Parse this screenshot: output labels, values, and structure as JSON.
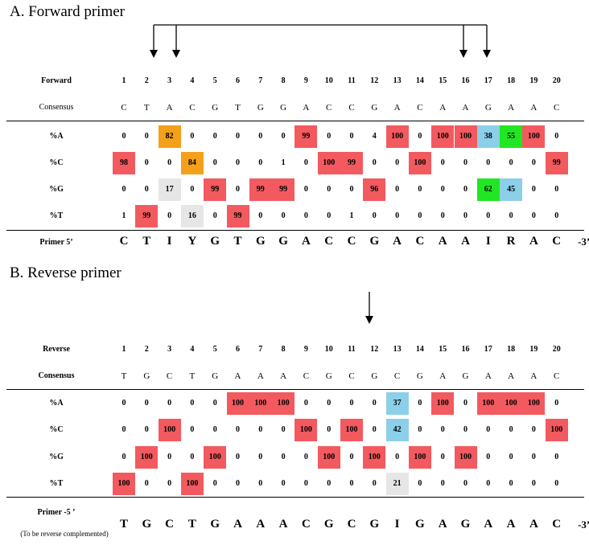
{
  "forward": {
    "title": "A.   Forward primer",
    "header_label": "Forward",
    "consensus_label": "Consensus",
    "positions": [
      "1",
      "2",
      "3",
      "4",
      "5",
      "6",
      "7",
      "8",
      "9",
      "10",
      "11",
      "12",
      "13",
      "14",
      "15",
      "16",
      "17",
      "18",
      "19",
      "20"
    ],
    "consensus": [
      "C",
      "T",
      "A",
      "C",
      "G",
      "T",
      "G",
      "G",
      "A",
      "C",
      "C",
      "G",
      "A",
      "C",
      "A",
      "A",
      "G",
      "A",
      "A",
      "C"
    ],
    "rows": [
      {
        "label": "%A",
        "values": [
          "0",
          "0",
          "82",
          "0",
          "0",
          "0",
          "0",
          "0",
          "99",
          "0",
          "0",
          "4",
          "100",
          "0",
          "100",
          "100",
          "38",
          "55",
          "100",
          "0"
        ],
        "colors": [
          "",
          "",
          "orange",
          "",
          "",
          "",
          "",
          "",
          "red",
          "",
          "",
          "",
          "red",
          "",
          "red",
          "red",
          "blue",
          "green",
          "red",
          ""
        ]
      },
      {
        "label": "%C",
        "values": [
          "98",
          "0",
          "0",
          "84",
          "0",
          "0",
          "0",
          "1",
          "0",
          "100",
          "99",
          "0",
          "0",
          "100",
          "0",
          "0",
          "0",
          "0",
          "0",
          "99"
        ],
        "colors": [
          "red",
          "",
          "",
          "orange",
          "",
          "",
          "",
          "",
          "",
          "red",
          "red",
          "",
          "",
          "red",
          "",
          "",
          "",
          "",
          "",
          "red"
        ]
      },
      {
        "label": "%G",
        "values": [
          "0",
          "0",
          "17",
          "0",
          "99",
          "0",
          "99",
          "99",
          "0",
          "0",
          "0",
          "96",
          "0",
          "0",
          "0",
          "0",
          "62",
          "45",
          "0",
          "0"
        ],
        "colors": [
          "",
          "",
          "gray",
          "",
          "red",
          "",
          "red",
          "red",
          "",
          "",
          "",
          "red",
          "",
          "",
          "",
          "",
          "green",
          "blue",
          "",
          ""
        ]
      },
      {
        "label": "%T",
        "values": [
          "1",
          "99",
          "0",
          "16",
          "0",
          "99",
          "0",
          "0",
          "0",
          "0",
          "1",
          "0",
          "0",
          "0",
          "0",
          "0",
          "0",
          "0",
          "0",
          "0"
        ],
        "colors": [
          "",
          "red",
          "",
          "gray",
          "",
          "red",
          "",
          "",
          "",
          "",
          "",
          "",
          "",
          "",
          "",
          "",
          "",
          "",
          "",
          ""
        ]
      }
    ],
    "primer_label": "Primer 5’",
    "primer": [
      "C",
      "T",
      "I",
      "Y",
      "G",
      "T",
      "G",
      "G",
      "A",
      "C",
      "C",
      "G",
      "A",
      "C",
      "A",
      "A",
      "I",
      "R",
      "A",
      "C"
    ],
    "primer_end": "-3’"
  },
  "reverse": {
    "title": "B.   Reverse primer",
    "header_label": "Reverse",
    "consensus_label": "Consensus",
    "positions": [
      "1",
      "2",
      "3",
      "4",
      "5",
      "6",
      "7",
      "8",
      "9",
      "10",
      "11",
      "12",
      "13",
      "14",
      "15",
      "16",
      "17",
      "18",
      "19",
      "20"
    ],
    "consensus": [
      "T",
      "G",
      "C",
      "T",
      "G",
      "A",
      "A",
      "A",
      "C",
      "G",
      "C",
      "G",
      "C",
      "G",
      "A",
      "G",
      "A",
      "A",
      "A",
      "C"
    ],
    "rows": [
      {
        "label": "%A",
        "values": [
          "0",
          "0",
          "0",
          "0",
          "0",
          "100",
          "100",
          "100",
          "0",
          "0",
          "0",
          "0",
          "37",
          "0",
          "100",
          "0",
          "100",
          "100",
          "100",
          "0"
        ],
        "colors": [
          "",
          "",
          "",
          "",
          "",
          "red",
          "red",
          "red",
          "",
          "",
          "",
          "",
          "blue",
          "",
          "red",
          "",
          "red",
          "red",
          "red",
          ""
        ]
      },
      {
        "label": "%C",
        "values": [
          "0",
          "0",
          "100",
          "0",
          "0",
          "0",
          "0",
          "0",
          "100",
          "0",
          "100",
          "0",
          "42",
          "0",
          "0",
          "0",
          "0",
          "0",
          "0",
          "100"
        ],
        "colors": [
          "",
          "",
          "red",
          "",
          "",
          "",
          "",
          "",
          "red",
          "",
          "red",
          "",
          "blue",
          "",
          "",
          "",
          "",
          "",
          "",
          "red"
        ]
      },
      {
        "label": "%G",
        "values": [
          "0",
          "100",
          "0",
          "0",
          "100",
          "0",
          "0",
          "0",
          "0",
          "100",
          "0",
          "100",
          "0",
          "100",
          "0",
          "100",
          "0",
          "0",
          "0",
          "0"
        ],
        "colors": [
          "",
          "red",
          "",
          "",
          "red",
          "",
          "",
          "",
          "",
          "red",
          "",
          "red",
          "",
          "red",
          "",
          "red",
          "",
          "",
          "",
          ""
        ]
      },
      {
        "label": "%T",
        "values": [
          "100",
          "0",
          "0",
          "100",
          "0",
          "0",
          "0",
          "0",
          "0",
          "0",
          "0",
          "0",
          "21",
          "0",
          "0",
          "0",
          "0",
          "0",
          "0",
          "0"
        ],
        "colors": [
          "red",
          "",
          "",
          "red",
          "",
          "",
          "",
          "",
          "",
          "",
          "",
          "",
          "gray",
          "",
          "",
          "",
          "",
          "",
          "",
          ""
        ]
      }
    ],
    "primer_label": "Primer -5 ’",
    "primer_note": "(To be reverse complemented)",
    "primer": [
      "T",
      "G",
      "C",
      "T",
      "G",
      "A",
      "A",
      "A",
      "C",
      "G",
      "C",
      "G",
      "I",
      "G",
      "A",
      "G",
      "A",
      "A",
      "A",
      "C"
    ],
    "primer_end": "-3’"
  }
}
